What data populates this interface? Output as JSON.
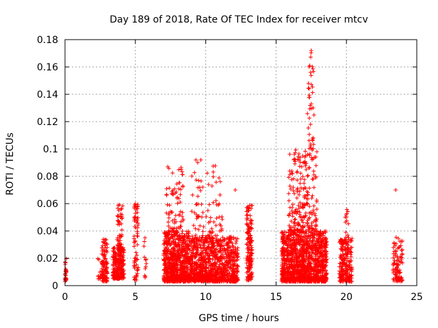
{
  "chart_data": {
    "type": "scatter",
    "title": "Day 189 of 2018, Rate Of TEC Index for receiver mtcv",
    "xlabel": "GPS time / hours",
    "ylabel": "ROTI / TECUs",
    "xlim": [
      0,
      25
    ],
    "ylim": [
      0,
      0.18
    ],
    "x_ticks": [
      "0",
      "5",
      "10",
      "15",
      "20",
      "25"
    ],
    "y_ticks": [
      "0",
      "0.02",
      "0.04",
      "0.06",
      "0.08",
      "0.1",
      "0.12",
      "0.14",
      "0.16",
      "0.18"
    ],
    "grid": true,
    "marker": "+",
    "color": "#ff0000",
    "clusters": [
      {
        "x": [
          0.0,
          0.1
        ],
        "y": [
          0.003,
          0.022
        ],
        "count": 25
      },
      {
        "x": [
          2.3,
          2.5
        ],
        "y": [
          0.005,
          0.022
        ],
        "count": 10
      },
      {
        "x": [
          2.6,
          3.0
        ],
        "y": [
          0.003,
          0.034
        ],
        "count": 110
      },
      {
        "x": [
          3.4,
          4.2
        ],
        "y": [
          0.005,
          0.028
        ],
        "count": 220
      },
      {
        "x": [
          3.7,
          4.1
        ],
        "y": [
          0.025,
          0.062
        ],
        "count": 60
      },
      {
        "x": [
          4.9,
          5.2
        ],
        "y": [
          0.004,
          0.06
        ],
        "count": 70
      },
      {
        "x": [
          5.6,
          5.8
        ],
        "y": [
          0.005,
          0.038
        ],
        "count": 12
      },
      {
        "x": [
          7.0,
          8.8
        ],
        "y": [
          0.003,
          0.04
        ],
        "count": 700
      },
      {
        "x": [
          7.2,
          8.4
        ],
        "y": [
          0.04,
          0.088
        ],
        "count": 70
      },
      {
        "x": [
          8.8,
          12.3
        ],
        "y": [
          0.003,
          0.036
        ],
        "count": 1000
      },
      {
        "x": [
          9.0,
          11.2
        ],
        "y": [
          0.036,
          0.092
        ],
        "count": 80
      },
      {
        "x": [
          12.9,
          13.3
        ],
        "y": [
          0.004,
          0.06
        ],
        "count": 160
      },
      {
        "x": [
          15.4,
          18.6
        ],
        "y": [
          0.003,
          0.04
        ],
        "count": 1200
      },
      {
        "x": [
          15.9,
          17.9
        ],
        "y": [
          0.04,
          0.1
        ],
        "count": 220
      },
      {
        "x": [
          17.2,
          17.7
        ],
        "y": [
          0.1,
          0.173
        ],
        "count": 35
      },
      {
        "x": [
          19.5,
          20.4
        ],
        "y": [
          0.003,
          0.035
        ],
        "count": 220
      },
      {
        "x": [
          19.9,
          20.2
        ],
        "y": [
          0.035,
          0.062
        ],
        "count": 14
      },
      {
        "x": [
          23.3,
          24.0
        ],
        "y": [
          0.003,
          0.036
        ],
        "count": 100
      }
    ],
    "highlights": [
      {
        "x": 17.5,
        "y": 0.172
      },
      {
        "x": 17.4,
        "y": 0.161
      },
      {
        "x": 17.45,
        "y": 0.156
      },
      {
        "x": 17.3,
        "y": 0.148
      },
      {
        "x": 17.5,
        "y": 0.133
      },
      {
        "x": 17.45,
        "y": 0.118
      },
      {
        "x": 7.3,
        "y": 0.087
      },
      {
        "x": 9.3,
        "y": 0.092
      },
      {
        "x": 12.1,
        "y": 0.07
      },
      {
        "x": 23.5,
        "y": 0.07
      },
      {
        "x": 16.3,
        "y": 0.096
      },
      {
        "x": 17.9,
        "y": 0.098
      }
    ]
  }
}
